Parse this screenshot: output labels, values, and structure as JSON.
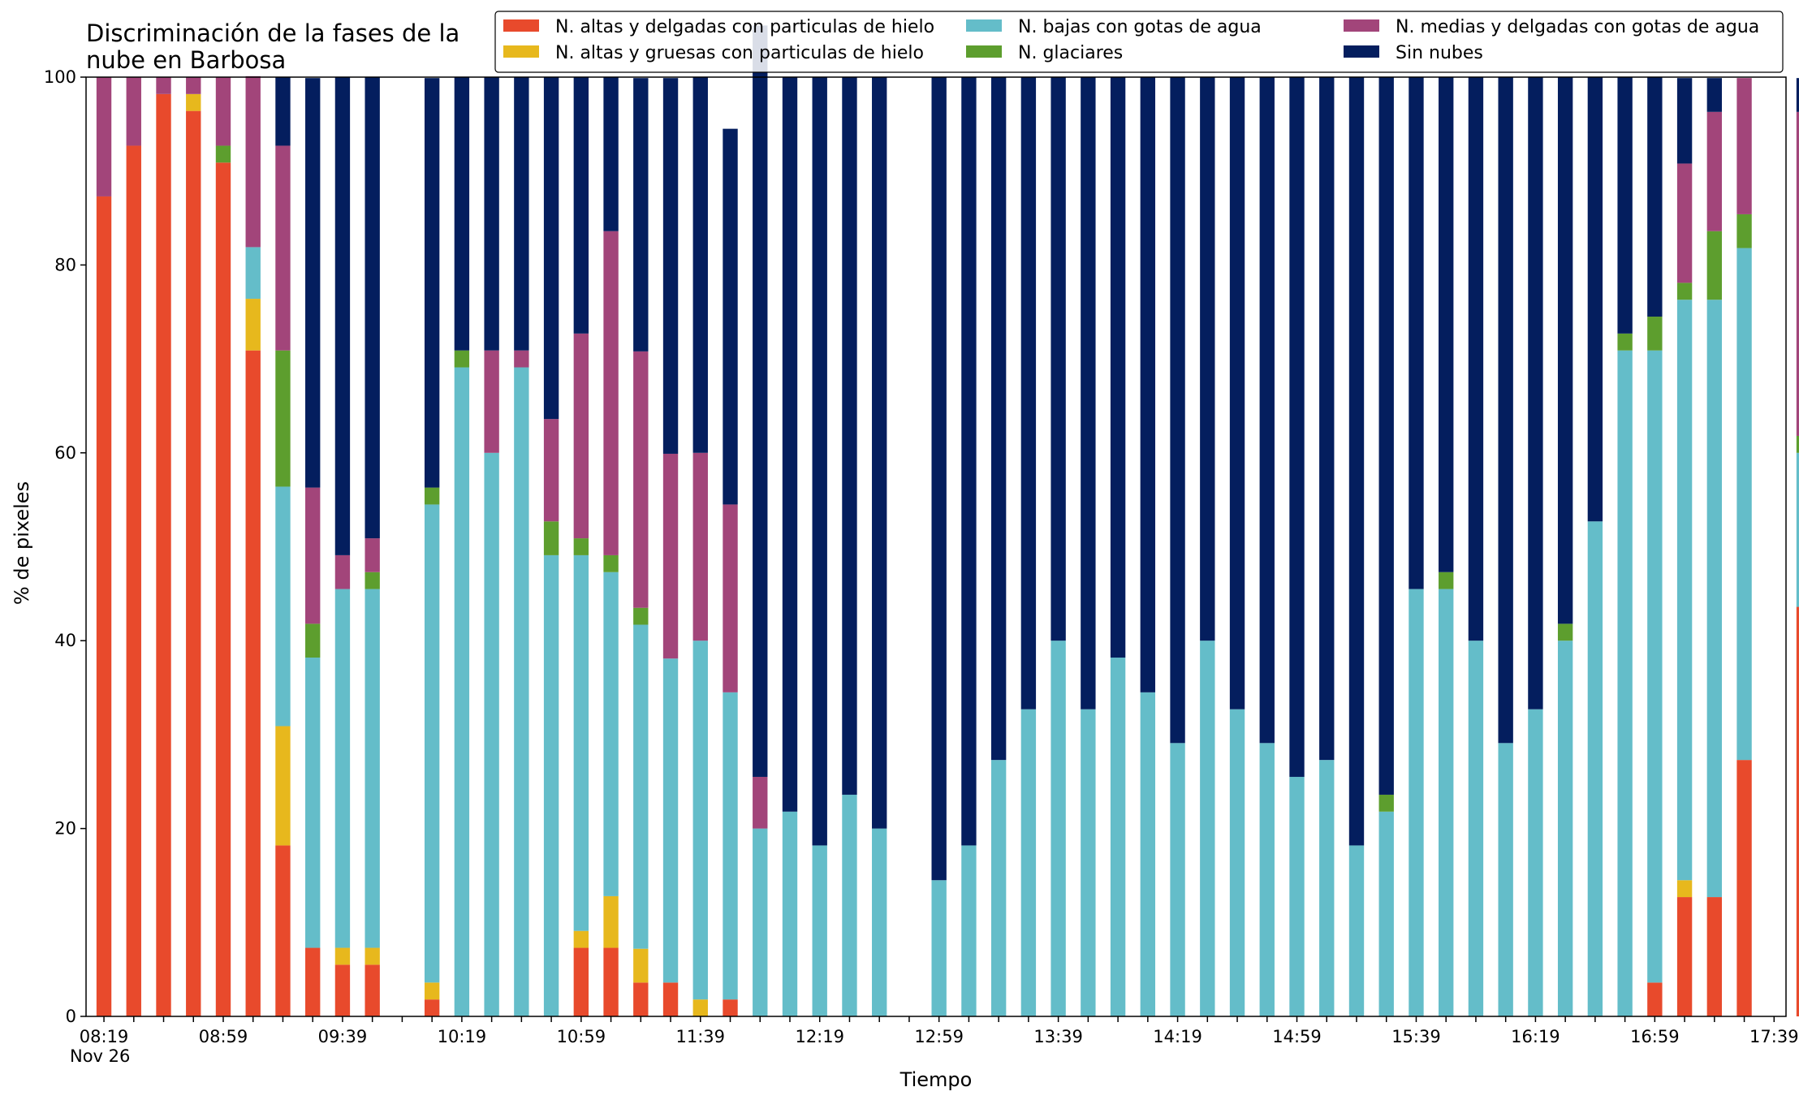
{
  "chart_data": {
    "type": "bar",
    "stacked": true,
    "title_lines": [
      "Discriminación de la fases de la",
      "nube en Barbosa"
    ],
    "xlabel": "Tiempo",
    "ylabel": "% de pixeles",
    "ylim": [
      0,
      100
    ],
    "yticks": [
      0,
      20,
      40,
      60,
      80,
      100
    ],
    "xlim_minutes": [
      -6,
      564
    ],
    "bar_interval_minutes": 10,
    "x_tick_labels": [
      {
        "at": 0,
        "text": "08:19"
      },
      {
        "at": 40,
        "text": "08:59"
      },
      {
        "at": 80,
        "text": "09:39"
      },
      {
        "at": 120,
        "text": "10:19"
      },
      {
        "at": 160,
        "text": "10:59"
      },
      {
        "at": 200,
        "text": "11:39"
      },
      {
        "at": 240,
        "text": "12:19"
      },
      {
        "at": 280,
        "text": "12:59"
      },
      {
        "at": 320,
        "text": "13:39"
      },
      {
        "at": 360,
        "text": "14:19"
      },
      {
        "at": 400,
        "text": "14:59"
      },
      {
        "at": 440,
        "text": "15:39"
      },
      {
        "at": 480,
        "text": "16:19"
      },
      {
        "at": 520,
        "text": "16:59"
      },
      {
        "at": 560,
        "text": "17:39"
      }
    ],
    "date_label": "Nov 26",
    "grid": false,
    "legend_position": "top",
    "series": [
      {
        "name": "N. altas y delgadas con particulas de hielo",
        "color": "#e84a2c",
        "values": [
          87.3,
          92.7,
          98.2,
          96.4,
          90.9,
          70.9,
          18.2,
          7.3,
          5.5,
          5.5,
          null,
          1.8,
          0,
          0,
          0,
          0,
          7.3,
          7.3,
          3.6,
          3.6,
          0,
          1.8,
          0,
          0,
          0,
          0,
          0,
          null,
          0,
          0,
          0,
          0,
          0,
          0,
          0,
          0,
          0,
          0,
          0,
          0,
          0,
          0,
          0,
          0,
          0,
          0,
          0,
          0,
          0,
          0,
          0,
          0,
          3.6,
          12.7,
          12.7,
          27.3,
          null,
          43.6
        ]
      },
      {
        "name": "N. altas y gruesas con particulas de hielo",
        "color": "#e7b81d",
        "values": [
          0,
          0,
          0,
          1.8,
          0,
          5.5,
          12.7,
          0,
          1.8,
          1.8,
          null,
          1.8,
          0,
          0,
          0,
          0,
          1.8,
          5.5,
          3.6,
          0,
          1.8,
          0,
          0,
          0,
          0,
          0,
          0,
          null,
          0,
          0,
          0,
          0,
          0,
          0,
          0,
          0,
          0,
          0,
          0,
          0,
          0,
          0,
          0,
          0,
          0,
          0,
          0,
          0,
          0,
          0,
          0,
          0,
          0,
          1.8,
          0,
          0,
          null,
          0
        ]
      },
      {
        "name": "N. bajas con gotas de agua",
        "color": "#64bdc9",
        "values": [
          0,
          0,
          0,
          0,
          0,
          5.5,
          25.5,
          30.9,
          38.2,
          38.2,
          null,
          50.9,
          69.1,
          60,
          69.1,
          49.1,
          40,
          34.5,
          34.5,
          34.5,
          38.2,
          32.7,
          20,
          21.8,
          18.2,
          23.6,
          20,
          null,
          14.5,
          18.2,
          27.3,
          32.7,
          40,
          32.7,
          38.2,
          34.5,
          29.1,
          40,
          32.7,
          29.1,
          25.5,
          27.3,
          18.2,
          21.8,
          45.5,
          45.5,
          40,
          29.1,
          32.7,
          40,
          52.7,
          70.9,
          67.3,
          61.8,
          63.6,
          54.5,
          null,
          16.4
        ]
      },
      {
        "name": "N. glaciares",
        "color": "#5d9e2e",
        "values": [
          0,
          0,
          0,
          0,
          1.8,
          0,
          14.5,
          3.6,
          0,
          1.8,
          null,
          1.8,
          1.8,
          0,
          0,
          3.6,
          1.8,
          1.8,
          1.8,
          0,
          0,
          0,
          0,
          0,
          0,
          0,
          0,
          null,
          0,
          0,
          0,
          0,
          0,
          0,
          0,
          0,
          0,
          0,
          0,
          0,
          0,
          0,
          0,
          1.8,
          0,
          1.8,
          0,
          0,
          0,
          1.8,
          0,
          1.8,
          3.6,
          1.8,
          7.3,
          3.6,
          null,
          1.8
        ]
      },
      {
        "name": "N. medias y delgadas con gotas de agua",
        "color": "#a2457a",
        "values": [
          12.7,
          7.3,
          1.8,
          1.8,
          7.3,
          18.2,
          21.8,
          14.5,
          3.6,
          3.6,
          null,
          0,
          0,
          10.9,
          1.8,
          10.9,
          21.8,
          34.5,
          27.3,
          21.8,
          20,
          20,
          5.5,
          0,
          0,
          0,
          0,
          null,
          0,
          0,
          0,
          0,
          0,
          0,
          0,
          0,
          0,
          0,
          0,
          0,
          0,
          0,
          0,
          0,
          0,
          0,
          0,
          0,
          0,
          0,
          0,
          0,
          0,
          12.7,
          12.7,
          14.5,
          null,
          34.5
        ]
      },
      {
        "name": "Sin nubes",
        "color": "#041e5e",
        "values": [
          0,
          0,
          0,
          0,
          0,
          0,
          7.3,
          43.6,
          50.9,
          49.1,
          null,
          43.6,
          29.1,
          29.1,
          29.1,
          36.4,
          27.3,
          16.4,
          29.1,
          40,
          40,
          40,
          80,
          78.2,
          81.8,
          76.4,
          80,
          null,
          85.5,
          81.8,
          72.7,
          67.3,
          60,
          67.3,
          61.8,
          65.5,
          70.9,
          60,
          67.3,
          70.9,
          74.5,
          72.7,
          81.8,
          76.4,
          54.5,
          52.7,
          60,
          70.9,
          67.3,
          58.2,
          47.3,
          27.3,
          25.5,
          9.1,
          3.6,
          0,
          null,
          3.6
        ]
      }
    ]
  }
}
